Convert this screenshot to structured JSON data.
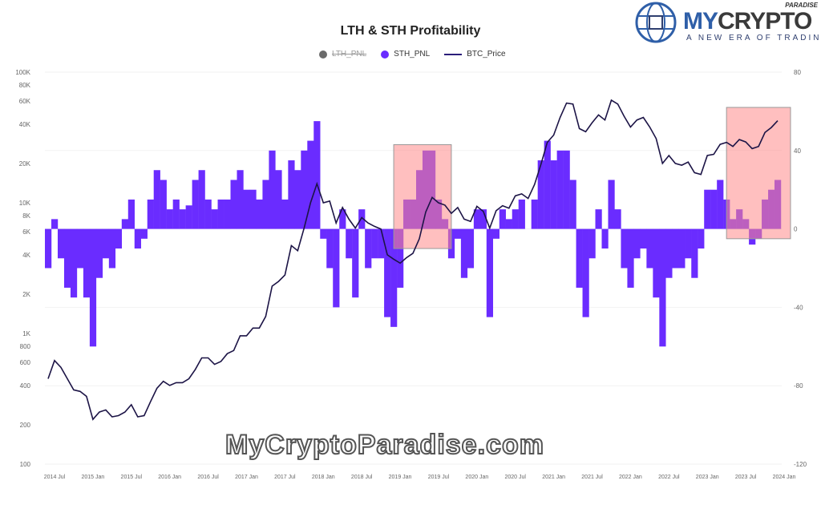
{
  "chart_data": {
    "type": "bar+line",
    "title": "LTH & STH Profitability",
    "legend": {
      "placement": "top-center",
      "entries": [
        {
          "name": "LTH_PNL",
          "color": "#6b6b6b",
          "hidden": true
        },
        {
          "name": "STH_PNL",
          "color": "#6a2cff"
        },
        {
          "name": "BTC_Price",
          "color": "#1c1446"
        }
      ]
    },
    "y_left": {
      "scale": "log",
      "range": [
        100,
        100000
      ],
      "ticks": [
        "100K",
        "80K",
        "60K",
        "40K",
        "20K",
        "10K",
        "8K",
        "6K",
        "4K",
        "2K",
        "1K",
        "800",
        "600",
        "400",
        "200",
        "100"
      ],
      "tick_values": [
        100000,
        80000,
        60000,
        40000,
        20000,
        10000,
        8000,
        6000,
        4000,
        2000,
        1000,
        800,
        600,
        400,
        200,
        100
      ]
    },
    "y_right": {
      "scale": "linear",
      "range": [
        -120,
        80
      ],
      "ticks": [
        "80",
        "40",
        "0",
        "-40",
        "-80",
        "-120"
      ],
      "tick_values": [
        80,
        40,
        0,
        -40,
        -80,
        -120
      ]
    },
    "x_ticks": [
      "2014 Jul",
      "2015 Jan",
      "2015 Jul",
      "2016 Jan",
      "2016 Jul",
      "2017 Jan",
      "2017 Jul",
      "2018 Jan",
      "2018 Jul",
      "2019 Jan",
      "2019 Jul",
      "2020 Jan",
      "2020 Jul",
      "2021 Jan",
      "2021 Jul",
      "2022 Jan",
      "2022 Jul",
      "2023 Jan",
      "2023 Jul",
      "2024 Jan"
    ],
    "x_start": "2014-06",
    "btc_price_monthly": [
      450,
      620,
      550,
      450,
      370,
      360,
      330,
      220,
      250,
      260,
      230,
      235,
      250,
      285,
      230,
      235,
      300,
      380,
      430,
      400,
      420,
      420,
      450,
      530,
      650,
      650,
      580,
      610,
      700,
      740,
      960,
      960,
      1100,
      1100,
      1350,
      2300,
      2500,
      2800,
      4700,
      4300,
      6400,
      10000,
      14000,
      10000,
      10300,
      7000,
      9200,
      7500,
      6400,
      7700,
      7000,
      6600,
      6300,
      4000,
      3700,
      3450,
      3800,
      4100,
      5300,
      8500,
      11000,
      10000,
      9600,
      8300,
      9200,
      7500,
      7200,
      9400,
      8600,
      6400,
      8700,
      9500,
      9100,
      11300,
      11700,
      10800,
      13800,
      19700,
      29000,
      33000,
      45000,
      58000,
      57000,
      37000,
      35000,
      41000,
      47000,
      43000,
      61000,
      57000,
      46000,
      38000,
      43000,
      45000,
      38000,
      31000,
      20000,
      23000,
      20000,
      19400,
      20500,
      17000,
      16500,
      23000,
      23500,
      28000,
      29000,
      27000,
      30500,
      29200,
      26000,
      27000,
      34500,
      37700,
      42500
    ],
    "sth_pnl_monthly": [
      -20,
      5,
      -15,
      -30,
      -35,
      -20,
      -35,
      -60,
      -25,
      -15,
      -20,
      -10,
      5,
      15,
      -10,
      -5,
      15,
      30,
      25,
      10,
      15,
      10,
      12,
      25,
      30,
      15,
      10,
      15,
      15,
      25,
      30,
      20,
      20,
      15,
      25,
      40,
      30,
      15,
      35,
      30,
      40,
      45,
      55,
      -5,
      -20,
      -40,
      10,
      -15,
      -35,
      10,
      -20,
      -15,
      -15,
      -45,
      -50,
      -30,
      15,
      15,
      30,
      40,
      40,
      15,
      5,
      -15,
      -5,
      -25,
      -20,
      10,
      10,
      -45,
      -5,
      10,
      5,
      10,
      15,
      0,
      15,
      35,
      45,
      35,
      40,
      40,
      25,
      -30,
      -45,
      -15,
      10,
      -10,
      25,
      10,
      -20,
      -30,
      -15,
      -10,
      -20,
      -35,
      -60,
      -25,
      -20,
      -20,
      -15,
      -25,
      -10,
      20,
      20,
      25,
      15,
      5,
      10,
      5,
      -8,
      -5,
      15,
      20,
      25
    ],
    "highlights": [
      {
        "from": "2018-12",
        "to": "2019-09",
        "right_axis_range": [
          -10,
          43
        ],
        "color": "#ff8a8a"
      },
      {
        "from": "2023-04",
        "to": "2024-02",
        "right_axis_range": [
          -5,
          62
        ],
        "color": "#ff8a8a"
      }
    ]
  },
  "logo": {
    "brand_a": "MY",
    "brand_b": "CRYPTO",
    "super": "PARADISE",
    "tagline": "A NEW ERA OF TRADING"
  },
  "watermark": "MyCryptoParadise.com"
}
